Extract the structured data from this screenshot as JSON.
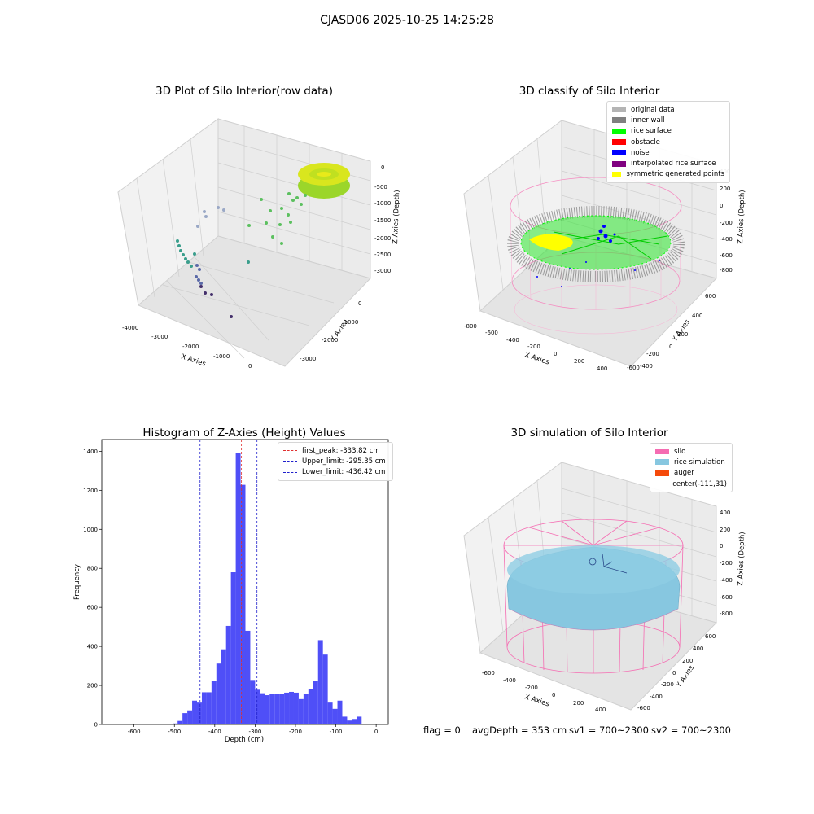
{
  "header": {
    "title": "CJASD06 2025-10-25 14:25:28"
  },
  "colors": {
    "histogram_bar": "#4f4ff7",
    "first_peak_line": "#e03030",
    "limit_lines": "#2020cc",
    "silo_wire": "#f58bc0",
    "rice_surface_sim": "#87c7e0"
  },
  "chart_data": [
    {
      "type": "scatter3d",
      "title": "3D Plot of Silo Interior(row data)",
      "xlabel": "X Axies",
      "ylabel": "Y Axies",
      "zlabel": "Z Axies (Depth)",
      "x_ticks": [
        "-4000",
        "-3000",
        "-2000",
        "-1000",
        "0"
      ],
      "y_ticks": [
        "0",
        "-1000",
        "-2000",
        "-3000"
      ],
      "z_ticks": [
        "0",
        "-500",
        "-1000",
        "-1500",
        "-2000",
        "-2500",
        "-3000"
      ],
      "colormap": "viridis by depth"
    },
    {
      "type": "scatter3d",
      "title": "3D classify of Silo Interior",
      "xlabel": "X Axies",
      "ylabel": "Y Axies",
      "zlabel": "Z Axies (Depth)",
      "x_ticks": [
        "-800",
        "-600",
        "-400",
        "-200",
        "0",
        "200",
        "400"
      ],
      "y_ticks": [
        "600",
        "400",
        "200",
        "0",
        "-200",
        "-400",
        "-600"
      ],
      "z_ticks": [
        "400",
        "200",
        "0",
        "-200",
        "-400",
        "-600",
        "-800"
      ],
      "legend_position": "upper-right",
      "legend": [
        {
          "label": "original data",
          "color": "#b4b4b4"
        },
        {
          "label": "inner wall",
          "color": "#808080"
        },
        {
          "label": "rice surface",
          "color": "#00ff00"
        },
        {
          "label": "obstacle",
          "color": "#ff0000"
        },
        {
          "label": "noise",
          "color": "#0000ff"
        },
        {
          "label": "interpolated rice surface",
          "color": "#800080"
        },
        {
          "label": "symmetric generated points",
          "color": "#ffff00"
        }
      ]
    },
    {
      "type": "bar",
      "title": "Histogram of Z-Axies (Height) Values",
      "xlabel": "Depth (cm)",
      "ylabel": "Frequency",
      "xlim": [
        -680,
        30
      ],
      "ylim": [
        0,
        1460
      ],
      "x_ticks": [
        -600,
        -500,
        -400,
        -300,
        -200,
        -100,
        0
      ],
      "y_ticks": [
        0,
        200,
        400,
        600,
        800,
        1000,
        1200,
        1400
      ],
      "bin_width": 12,
      "bins": [
        {
          "x": -528,
          "v": 3
        },
        {
          "x": -516,
          "v": 2
        },
        {
          "x": -504,
          "v": 5
        },
        {
          "x": -492,
          "v": 18
        },
        {
          "x": -480,
          "v": 58
        },
        {
          "x": -468,
          "v": 72
        },
        {
          "x": -456,
          "v": 122
        },
        {
          "x": -444,
          "v": 112
        },
        {
          "x": -432,
          "v": 165
        },
        {
          "x": -420,
          "v": 165
        },
        {
          "x": -408,
          "v": 222
        },
        {
          "x": -396,
          "v": 312
        },
        {
          "x": -384,
          "v": 385
        },
        {
          "x": -372,
          "v": 505
        },
        {
          "x": -360,
          "v": 780
        },
        {
          "x": -348,
          "v": 1390
        },
        {
          "x": -336,
          "v": 1228
        },
        {
          "x": -324,
          "v": 480
        },
        {
          "x": -312,
          "v": 228
        },
        {
          "x": -300,
          "v": 178
        },
        {
          "x": -288,
          "v": 160
        },
        {
          "x": -276,
          "v": 150
        },
        {
          "x": -264,
          "v": 158
        },
        {
          "x": -252,
          "v": 155
        },
        {
          "x": -240,
          "v": 158
        },
        {
          "x": -228,
          "v": 163
        },
        {
          "x": -216,
          "v": 167
        },
        {
          "x": -204,
          "v": 163
        },
        {
          "x": -192,
          "v": 130
        },
        {
          "x": -180,
          "v": 155
        },
        {
          "x": -168,
          "v": 180
        },
        {
          "x": -156,
          "v": 222
        },
        {
          "x": -144,
          "v": 432
        },
        {
          "x": -132,
          "v": 358
        },
        {
          "x": -120,
          "v": 112
        },
        {
          "x": -108,
          "v": 80
        },
        {
          "x": -96,
          "v": 122
        },
        {
          "x": -84,
          "v": 40
        },
        {
          "x": -72,
          "v": 20
        },
        {
          "x": -60,
          "v": 28
        },
        {
          "x": -48,
          "v": 40
        }
      ],
      "vlines": [
        {
          "label": "first_peak: -333.82 cm",
          "value": -333.82,
          "color": "#e03030"
        },
        {
          "label": "Upper_limit: -295.35 cm",
          "value": -295.35,
          "color": "#2020cc"
        },
        {
          "label": "Lower_limit: -436.42 cm",
          "value": -436.42,
          "color": "#2020cc"
        }
      ],
      "legend_position": "upper-right"
    },
    {
      "type": "surface3d",
      "title": "3D simulation of Silo Interior",
      "xlabel": "X Axies",
      "ylabel": "Y Axies",
      "zlabel": "Z Axies (Depth)",
      "x_ticks": [
        "-600",
        "-400",
        "-200",
        "0",
        "200",
        "400"
      ],
      "y_ticks": [
        "600",
        "400",
        "200",
        "0",
        "-200",
        "-400",
        "-600"
      ],
      "z_ticks": [
        "400",
        "200",
        "0",
        "-200",
        "-400",
        "-600",
        "-800"
      ],
      "legend_position": "upper-right",
      "legend": [
        {
          "label": "silo",
          "color": "#f56cb2"
        },
        {
          "label": "rice simulation",
          "color": "#87c7e0"
        },
        {
          "label": "auger",
          "color": "#f54a0a"
        },
        {
          "label": "center(-111,31)",
          "color": ""
        }
      ]
    }
  ],
  "status": {
    "flag": "flag = 0",
    "avg_depth": "avgDepth = 353 cm",
    "sv1": "sv1 = 700~2300",
    "sv2": "sv2 = 700~2300"
  }
}
